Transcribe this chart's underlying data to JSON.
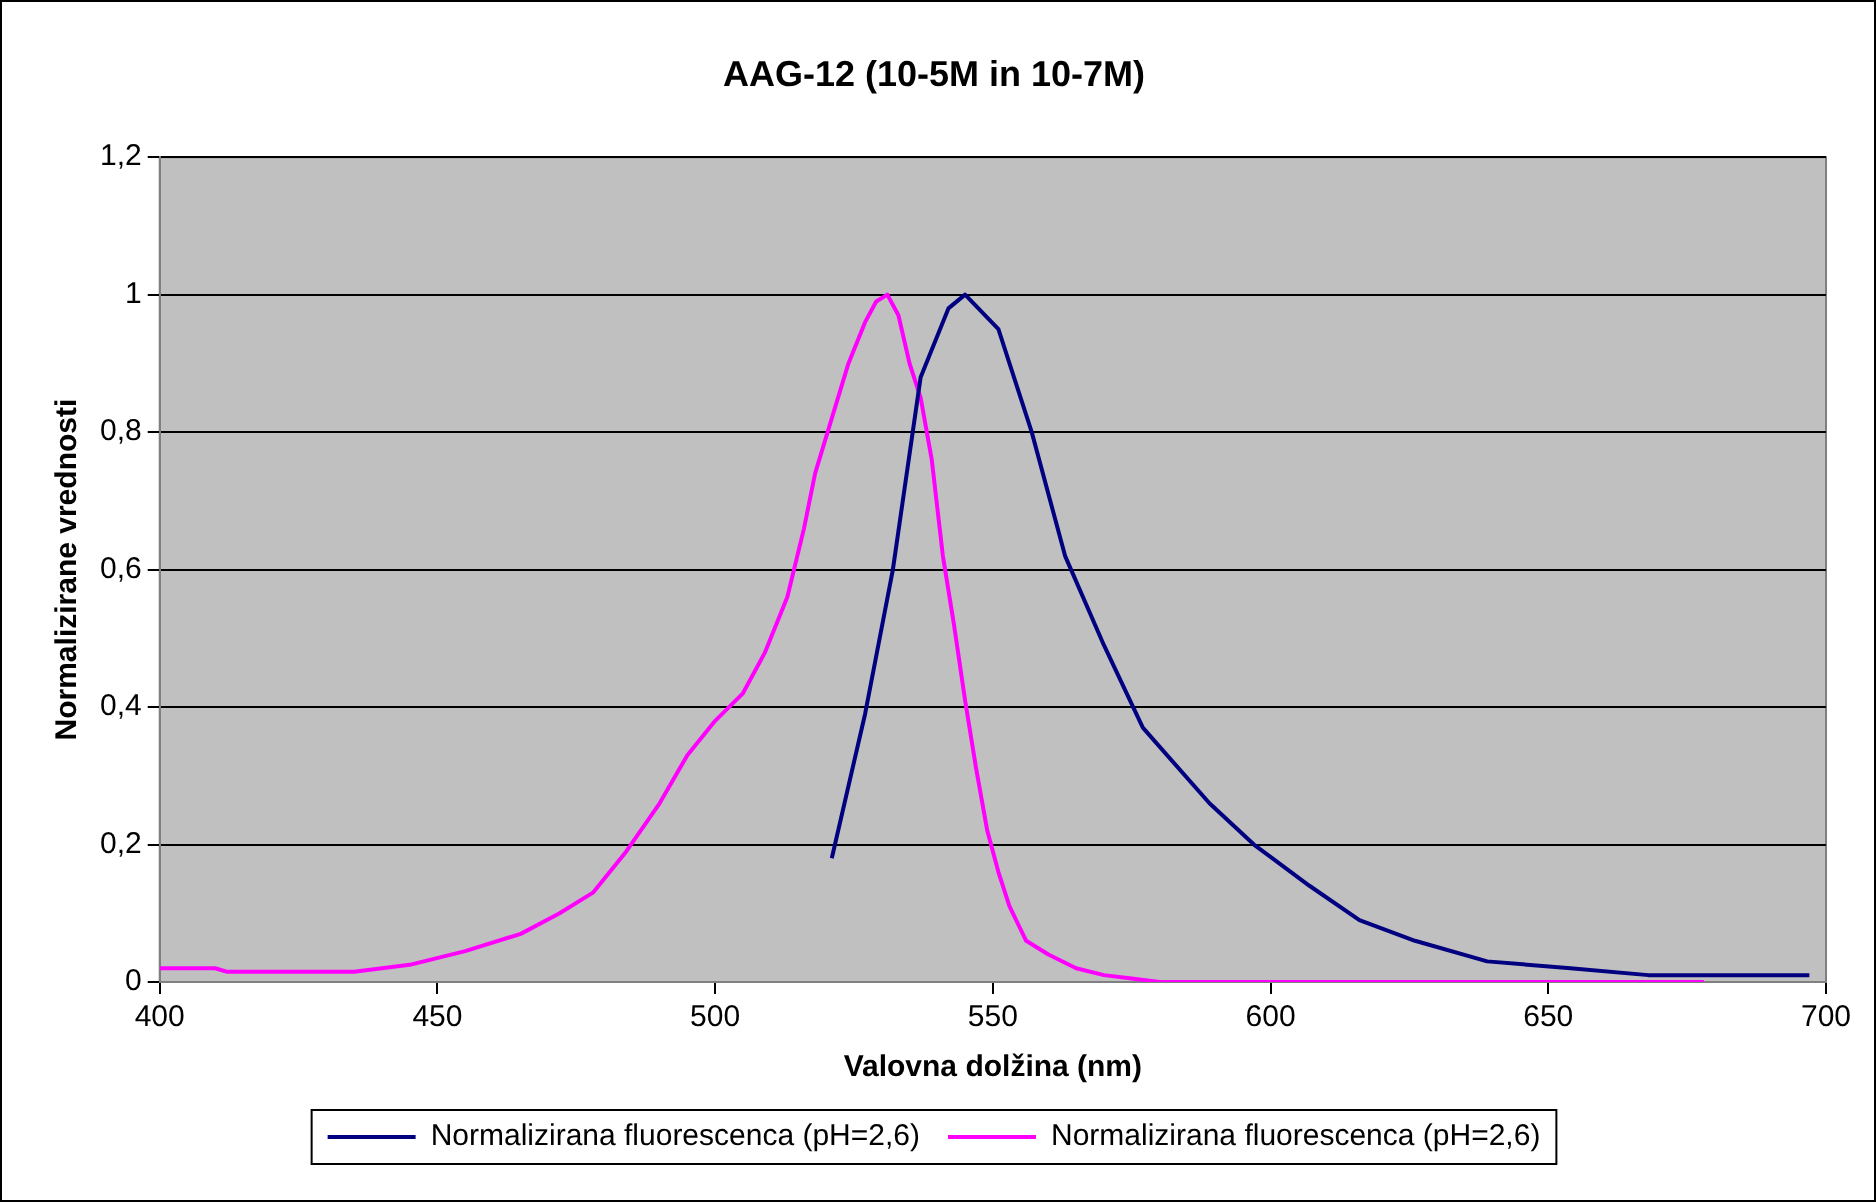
{
  "chart_data": {
    "type": "line",
    "title": "AAG-12 (10-5M in 10-7M)",
    "xlabel": "Valovna dolžina (nm)",
    "ylabel": "Normalizirane vrednosti",
    "xlim": [
      400,
      700
    ],
    "xticks": [
      400,
      450,
      500,
      550,
      600,
      650,
      700
    ],
    "ylim": [
      0,
      1.2
    ],
    "yticks": [
      0,
      {
        "value": 0.2,
        "label": "0,2"
      },
      {
        "value": 0.4,
        "label": "0,4"
      },
      {
        "value": 0.6,
        "label": "0,6"
      },
      {
        "value": 0.8,
        "label": "0,8"
      },
      1,
      {
        "value": 1.2,
        "label": "1,2"
      }
    ],
    "grid": "y",
    "legend": "bottom",
    "marker": "none",
    "line_style": "solid",
    "series": [
      {
        "name": "Normalizirana fluorescenca (pH=2,6)",
        "color": "#000080",
        "x": [
          521,
          527,
          532,
          537,
          542,
          545,
          551,
          557,
          563,
          570,
          577,
          589,
          597,
          607,
          616,
          626,
          639,
          654,
          668,
          697
        ],
        "values": [
          0.18,
          0.39,
          0.6,
          0.88,
          0.98,
          1.0,
          0.95,
          0.8,
          0.62,
          0.49,
          0.37,
          0.26,
          0.2,
          0.14,
          0.09,
          0.06,
          0.03,
          0.02,
          0.01,
          0.01
        ]
      },
      {
        "name": "Normalizirana fluorescenca (pH=2,6)",
        "color": "#ff00ff",
        "x": [
          400,
          410,
          412,
          435,
          445,
          455,
          465,
          472,
          478,
          484,
          490,
          495,
          500,
          505,
          509,
          513,
          516,
          518,
          521,
          524,
          527,
          529,
          531,
          533,
          535,
          537,
          539,
          541,
          543,
          545,
          547,
          549,
          551,
          553,
          556,
          560,
          565,
          570,
          575,
          580,
          678
        ],
        "values": [
          0.02,
          0.02,
          0.015,
          0.015,
          0.025,
          0.045,
          0.07,
          0.1,
          0.13,
          0.19,
          0.26,
          0.33,
          0.38,
          0.42,
          0.48,
          0.56,
          0.66,
          0.74,
          0.82,
          0.9,
          0.96,
          0.99,
          1.0,
          0.97,
          0.9,
          0.85,
          0.76,
          0.62,
          0.52,
          0.41,
          0.31,
          0.22,
          0.16,
          0.11,
          0.06,
          0.04,
          0.02,
          0.01,
          0.005,
          0,
          0
        ]
      }
    ]
  }
}
